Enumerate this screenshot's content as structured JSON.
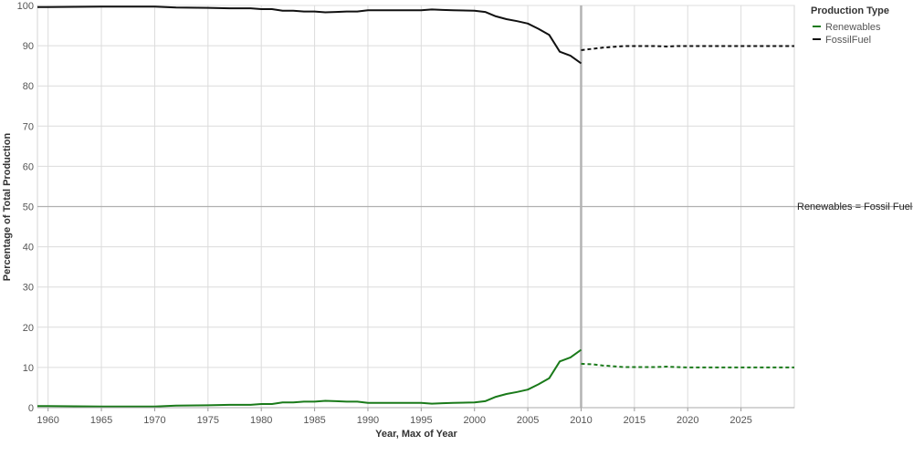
{
  "chart_data": {
    "type": "line",
    "xlabel": "Year, Max of Year",
    "ylabel": "Percentage of Total Production",
    "xlim": [
      1959,
      2030
    ],
    "ylim": [
      0,
      100
    ],
    "x_ticks": [
      1960,
      1965,
      1970,
      1975,
      1980,
      1985,
      1990,
      1995,
      2000,
      2005,
      2010,
      2015,
      2020,
      2025
    ],
    "y_ticks": [
      0,
      10,
      20,
      30,
      40,
      50,
      60,
      70,
      80,
      90,
      100
    ],
    "grid": true,
    "legend": {
      "title": "Production Type",
      "placement": "top-right",
      "entries": [
        {
          "label": "Renewables",
          "color": "#1a7a1a"
        },
        {
          "label": "FossilFuel",
          "color": "#111111"
        }
      ]
    },
    "reference_line": {
      "y": 50,
      "label": "Renewables = Fossil Fuel"
    },
    "forecast_start_marker": {
      "x": 2010
    },
    "series": [
      {
        "name": "Renewables",
        "color": "#1a7a1a",
        "style": "solid",
        "points": [
          [
            1959,
            0.4
          ],
          [
            1960,
            0.4
          ],
          [
            1965,
            0.3
          ],
          [
            1970,
            0.3
          ],
          [
            1971,
            0.4
          ],
          [
            1972,
            0.5
          ],
          [
            1975,
            0.6
          ],
          [
            1977,
            0.7
          ],
          [
            1979,
            0.7
          ],
          [
            1980,
            0.9
          ],
          [
            1981,
            0.9
          ],
          [
            1982,
            1.3
          ],
          [
            1983,
            1.3
          ],
          [
            1984,
            1.5
          ],
          [
            1985,
            1.5
          ],
          [
            1986,
            1.7
          ],
          [
            1987,
            1.6
          ],
          [
            1988,
            1.5
          ],
          [
            1989,
            1.5
          ],
          [
            1990,
            1.2
          ],
          [
            1995,
            1.2
          ],
          [
            1996,
            1.0
          ],
          [
            1997,
            1.1
          ],
          [
            1998,
            1.2
          ],
          [
            2000,
            1.3
          ],
          [
            2001,
            1.6
          ],
          [
            2002,
            2.7
          ],
          [
            2003,
            3.4
          ],
          [
            2004,
            3.9
          ],
          [
            2005,
            4.5
          ],
          [
            2006,
            5.8
          ],
          [
            2007,
            7.3
          ],
          [
            2008,
            11.5
          ],
          [
            2009,
            12.5
          ],
          [
            2010,
            14.4
          ]
        ]
      },
      {
        "name": "FossilFuel",
        "color": "#111111",
        "style": "solid",
        "points": [
          [
            1959,
            99.6
          ],
          [
            1960,
            99.6
          ],
          [
            1965,
            99.7
          ],
          [
            1970,
            99.7
          ],
          [
            1972,
            99.5
          ],
          [
            1975,
            99.4
          ],
          [
            1977,
            99.3
          ],
          [
            1979,
            99.3
          ],
          [
            1980,
            99.1
          ],
          [
            1981,
            99.1
          ],
          [
            1982,
            98.7
          ],
          [
            1983,
            98.7
          ],
          [
            1984,
            98.5
          ],
          [
            1985,
            98.5
          ],
          [
            1986,
            98.3
          ],
          [
            1987,
            98.4
          ],
          [
            1988,
            98.5
          ],
          [
            1989,
            98.5
          ],
          [
            1990,
            98.8
          ],
          [
            1995,
            98.8
          ],
          [
            1996,
            99.0
          ],
          [
            1997,
            98.9
          ],
          [
            1998,
            98.8
          ],
          [
            2000,
            98.7
          ],
          [
            2001,
            98.4
          ],
          [
            2002,
            97.3
          ],
          [
            2003,
            96.6
          ],
          [
            2004,
            96.1
          ],
          [
            2005,
            95.5
          ],
          [
            2006,
            94.2
          ],
          [
            2007,
            92.7
          ],
          [
            2008,
            88.5
          ],
          [
            2009,
            87.5
          ],
          [
            2010,
            85.6
          ]
        ]
      },
      {
        "name": "Renewables",
        "color": "#1a7a1a",
        "style": "dashed",
        "points": [
          [
            2010,
            10.9
          ],
          [
            2011,
            10.8
          ],
          [
            2012,
            10.5
          ],
          [
            2013,
            10.3
          ],
          [
            2014,
            10.1
          ],
          [
            2015,
            10.1
          ],
          [
            2016,
            10.1
          ],
          [
            2017,
            10.1
          ],
          [
            2018,
            10.2
          ],
          [
            2019,
            10.1
          ],
          [
            2020,
            10.0
          ],
          [
            2025,
            10.0
          ],
          [
            2030,
            10.0
          ]
        ]
      },
      {
        "name": "FossilFuel",
        "color": "#111111",
        "style": "dashed",
        "points": [
          [
            2010,
            88.9
          ],
          [
            2011,
            89.2
          ],
          [
            2012,
            89.5
          ],
          [
            2013,
            89.7
          ],
          [
            2014,
            89.9
          ],
          [
            2015,
            89.9
          ],
          [
            2016,
            89.9
          ],
          [
            2017,
            89.9
          ],
          [
            2018,
            89.8
          ],
          [
            2019,
            89.9
          ],
          [
            2020,
            89.9
          ],
          [
            2025,
            89.9
          ],
          [
            2030,
            89.9
          ]
        ]
      }
    ]
  }
}
